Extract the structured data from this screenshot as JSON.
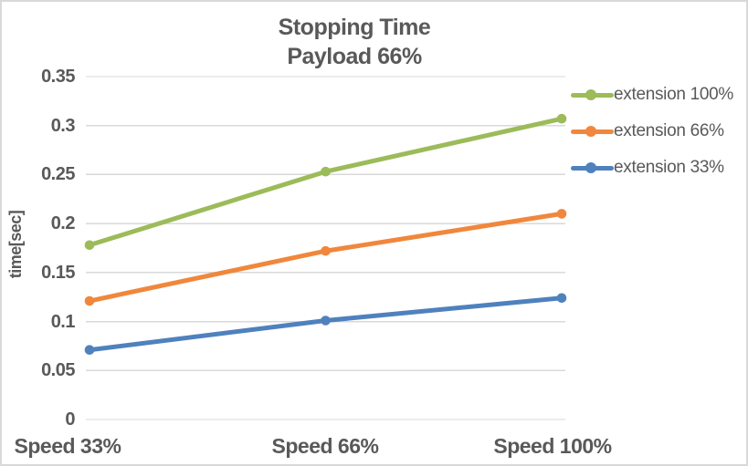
{
  "chart_data": {
    "type": "line",
    "title_lines": [
      "Stopping Time",
      "Payload 66%"
    ],
    "title": "Stopping Time Payload 66%",
    "ylabel": "time[sec]",
    "xlabel": "",
    "categories": [
      "Speed 33%",
      "Speed 66%",
      "Speed 100%"
    ],
    "series": [
      {
        "name": "extension 100%",
        "color": "#9CBB59",
        "values": [
          0.178,
          0.253,
          0.307
        ]
      },
      {
        "name": "extension 66%",
        "color": "#F0873C",
        "values": [
          0.121,
          0.172,
          0.21
        ]
      },
      {
        "name": "extension 33%",
        "color": "#4F81BD",
        "values": [
          0.071,
          0.101,
          0.124
        ]
      }
    ],
    "ylim": [
      0,
      0.35
    ],
    "ytick_step": 0.05,
    "yticks": [
      "0.35",
      "0.3",
      "0.25",
      "0.2",
      "0.15",
      "0.1",
      "0.05",
      "0"
    ],
    "grid": true,
    "legend_position": "right"
  },
  "colors": {
    "text": "#595959",
    "grid": "#D9D9D9",
    "border": "#D9D9D9",
    "background": "#FFFFFF"
  }
}
